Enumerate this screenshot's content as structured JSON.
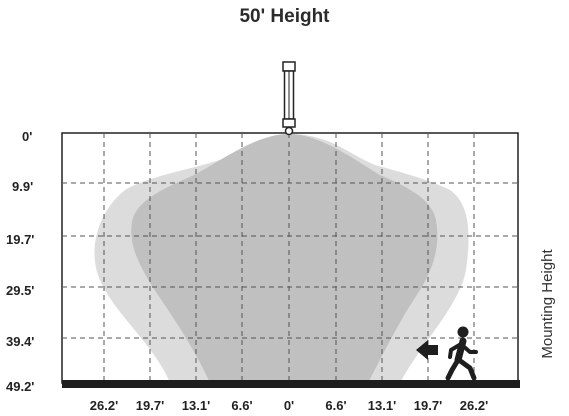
{
  "title": "50' Height",
  "y_labels": [
    "0'",
    "9.9'",
    "19.7'",
    "29.5'",
    "39.4'",
    "49.2'"
  ],
  "x_labels": [
    "26.2'",
    "19.7'",
    "13.1'",
    "6.6'",
    "0'",
    "6.6'",
    "13.1'",
    "19.7'",
    "26.2'"
  ],
  "side_label": "Mounting Height",
  "colors": {
    "outer_zone": "#dcdcdc",
    "inner_zone": "#c0c0c0",
    "floor": "#1e1e1e",
    "grid": "#555555"
  },
  "icons": [
    "sensor-fixture-icon",
    "walking-person-icon",
    "direction-arrow-icon"
  ]
}
